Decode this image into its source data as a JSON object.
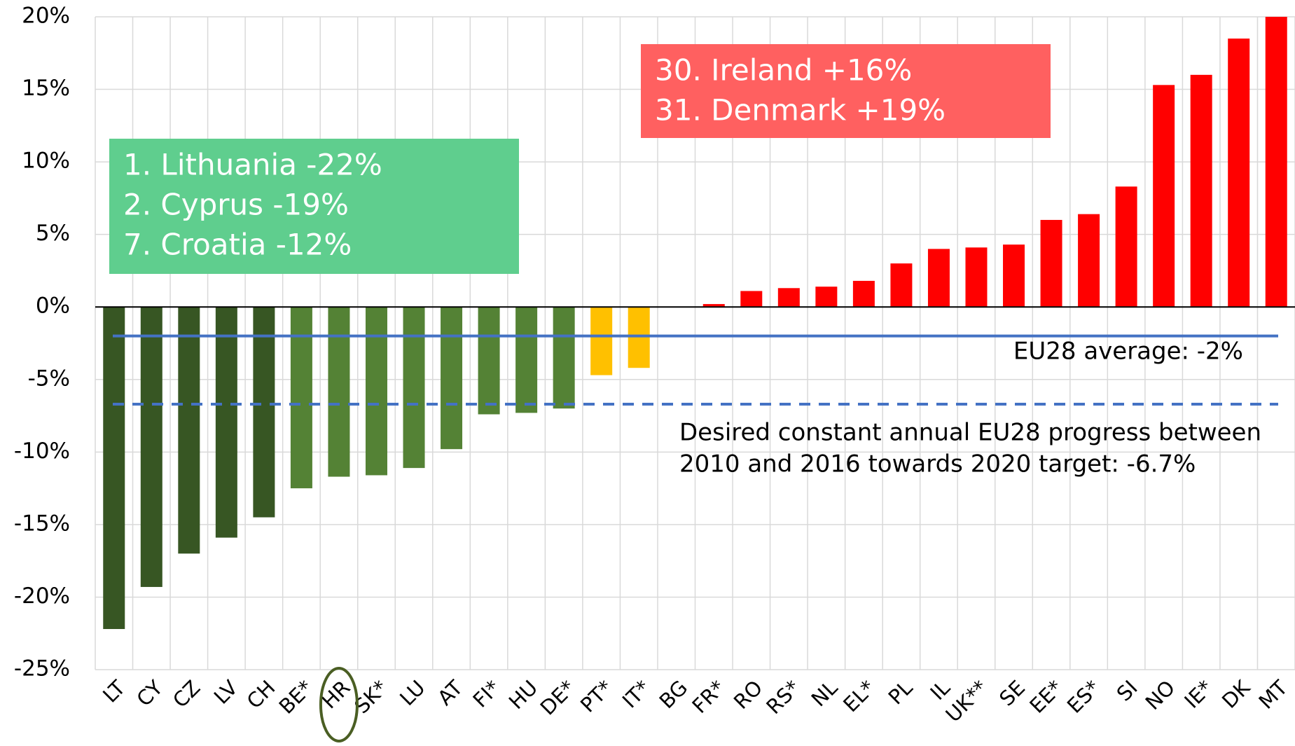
{
  "chart_data": {
    "type": "bar",
    "categories": [
      "LT",
      "CY",
      "CZ",
      "LV",
      "CH",
      "BE*",
      "HR",
      "SK*",
      "LU",
      "AT",
      "FI*",
      "HU",
      "DE*",
      "PT*",
      "IT*",
      "BG",
      "FR*",
      "RO",
      "RS*",
      "NL",
      "EL*",
      "PL",
      "IL",
      "UK**",
      "SE",
      "EE*",
      "ES*",
      "SI",
      "NO",
      "IE*",
      "DK",
      "MT"
    ],
    "values": [
      -22.2,
      -19.3,
      -17.0,
      -15.9,
      -14.5,
      -12.5,
      -11.7,
      -11.6,
      -11.1,
      -9.8,
      -7.4,
      -7.3,
      -7.0,
      -4.7,
      -4.2,
      0,
      0.2,
      1.1,
      1.3,
      1.4,
      1.8,
      3.0,
      4.0,
      4.1,
      4.3,
      6.0,
      6.4,
      8.3,
      15.3,
      16.0,
      18.5,
      20
    ],
    "colors": [
      "#375623",
      "#375623",
      "#375623",
      "#375623",
      "#375623",
      "#548235",
      "#548235",
      "#548235",
      "#548235",
      "#548235",
      "#548235",
      "#548235",
      "#548235",
      "#ffc000",
      "#ffc000",
      "#ff0000",
      "#ff0000",
      "#ff0000",
      "#ff0000",
      "#ff0000",
      "#ff0000",
      "#ff0000",
      "#ff0000",
      "#ff0000",
      "#ff0000",
      "#ff0000",
      "#ff0000",
      "#ff0000",
      "#ff0000",
      "#ff0000",
      "#ff0000",
      "#ff0000"
    ],
    "ylim": [
      -25,
      20
    ],
    "yticks": [
      {
        "value": -25,
        "label": "-25%"
      },
      {
        "value": -20,
        "label": "-20%"
      },
      {
        "value": -15,
        "label": "-15%"
      },
      {
        "value": -10,
        "label": "-10%"
      },
      {
        "value": -5,
        "label": "-5%"
      },
      {
        "value": 0,
        "label": "0%"
      },
      {
        "value": 5,
        "label": "5%"
      },
      {
        "value": 10,
        "label": "10%"
      },
      {
        "value": 15,
        "label": "15%"
      },
      {
        "value": 20,
        "label": "20%"
      }
    ],
    "grid": true,
    "reference_lines": [
      {
        "value": -2,
        "label": [
          "EU28 average: -2%"
        ],
        "color": "#4472c4",
        "style": "solid"
      },
      {
        "value": -6.7,
        "label": [
          "Desired constant annual EU28 progress between",
          "2010 and 2016 towards 2020 target: -6.7%"
        ],
        "color": "#4472c4",
        "style": "dashed"
      }
    ],
    "annotations": [
      {
        "lines": [
          "1. Lithuania -22%",
          "2. Cyprus -19%",
          "7. Croatia -12%"
        ],
        "color": "#5fce8e"
      },
      {
        "lines": [
          "30. Ireland +16%",
          "31. Denmark +19%"
        ],
        "color": "#ff6060"
      }
    ]
  }
}
